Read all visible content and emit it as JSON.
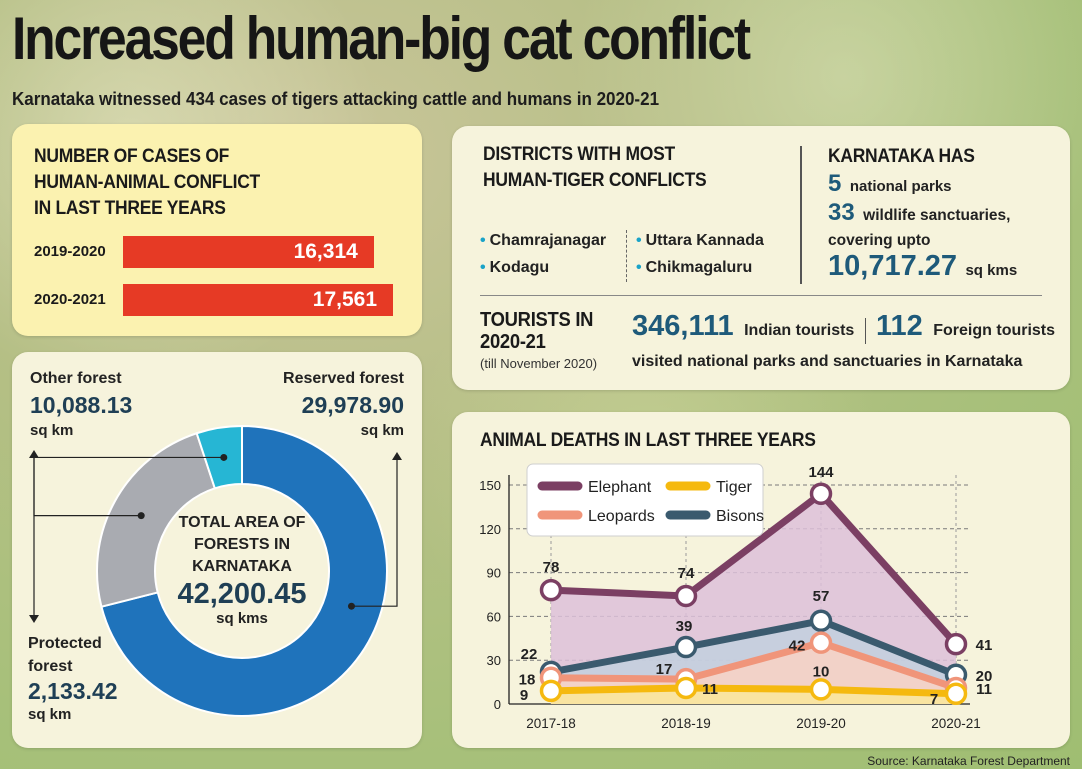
{
  "title": "Increased human-big cat conflict",
  "subtitle": "Karnataka witnessed 434 cases of tigers attacking cattle and humans in 2020-21",
  "source": "Source: Karnataka Forest Department",
  "conflict_cases": {
    "heading_lines": [
      "NUMBER OF CASES OF",
      "HUMAN-ANIMAL CONFLICT",
      "IN LAST THREE YEARS"
    ],
    "rows": [
      {
        "year": "2019-2020",
        "value_label": "16,314"
      },
      {
        "year": "2020-2021",
        "value_label": "17,561"
      }
    ]
  },
  "districts": {
    "heading_lines": [
      "DISTRICTS WITH MOST",
      "HUMAN-TIGER CONFLICTS"
    ],
    "items": [
      "Chamrajanagar",
      "Kodagu",
      "Uttara Kannada",
      "Chikmagaluru"
    ]
  },
  "karnataka_has": {
    "heading": "KARNATAKA HAS",
    "national_parks_num": "5",
    "national_parks_text": "national parks",
    "sanctuaries_num": "33",
    "sanctuaries_text": "wildlife sanctuaries,",
    "covering_text": "covering upto",
    "area_num": "10,717.27",
    "area_unit": "sq kms"
  },
  "tourists": {
    "heading_lines": [
      "TOURISTS IN",
      "2020-21"
    ],
    "note": "(till November 2020)",
    "indian_num": "346,111",
    "indian_text": "Indian tourists",
    "foreign_num": "112",
    "foreign_text": "Foreign tourists",
    "footer": "visited national parks and sanctuaries in Karnataka"
  },
  "forest_area": {
    "center_lines": [
      "TOTAL AREA OF",
      "FORESTS IN",
      "KARNATAKA"
    ],
    "center_value": "42,200.45",
    "center_unit": "sq kms",
    "other": {
      "label": "Other forest",
      "value": "10,088.13",
      "unit": "sq km"
    },
    "reserved": {
      "label": "Reserved forest",
      "value": "29,978.90",
      "unit": "sq km"
    },
    "protected": {
      "label_lines": [
        "Protected",
        "forest"
      ],
      "value": "2,133.42",
      "unit": "sq km"
    }
  },
  "animal_deaths": {
    "heading": "ANIMAL DEATHS IN LAST THREE YEARS"
  },
  "chart_data": [
    {
      "type": "bar",
      "title": "NUMBER OF CASES OF HUMAN-ANIMAL CONFLICT IN LAST THREE YEARS",
      "categories": [
        "2019-2020",
        "2020-2021"
      ],
      "values": [
        16314,
        17561
      ]
    },
    {
      "type": "pie",
      "title": "TOTAL AREA OF FORESTS IN KARNATAKA",
      "total": 42200.45,
      "labels": [
        "Reserved forest",
        "Other forest",
        "Protected forest"
      ],
      "values": [
        29978.9,
        10088.13,
        2133.42
      ],
      "colors": [
        "#1f73bb",
        "#a9abb1",
        "#26b6d4"
      ]
    },
    {
      "type": "line",
      "title": "ANIMAL DEATHS IN LAST THREE YEARS",
      "categories": [
        "2017-18",
        "2018-19",
        "2019-20",
        "2020-21"
      ],
      "yticks": [
        0,
        30,
        60,
        90,
        120,
        150
      ],
      "ylim": [
        0,
        150
      ],
      "legend_position": "top-left",
      "series": [
        {
          "name": "Elephant",
          "values": [
            78,
            74,
            144,
            41
          ],
          "color": "#7b3f63",
          "fill": "#ddc0d9"
        },
        {
          "name": "Bisons",
          "values": [
            22,
            39,
            57,
            20
          ],
          "color": "#3a5a6e",
          "fill": "#c2d0de"
        },
        {
          "name": "Leopards",
          "values": [
            18,
            17,
            42,
            11
          ],
          "color": "#f0957a",
          "fill": "#f9d2c4"
        },
        {
          "name": "Tiger",
          "values": [
            9,
            11,
            10,
            7
          ],
          "color": "#f5b90f",
          "fill": "#fae79a"
        }
      ]
    }
  ]
}
